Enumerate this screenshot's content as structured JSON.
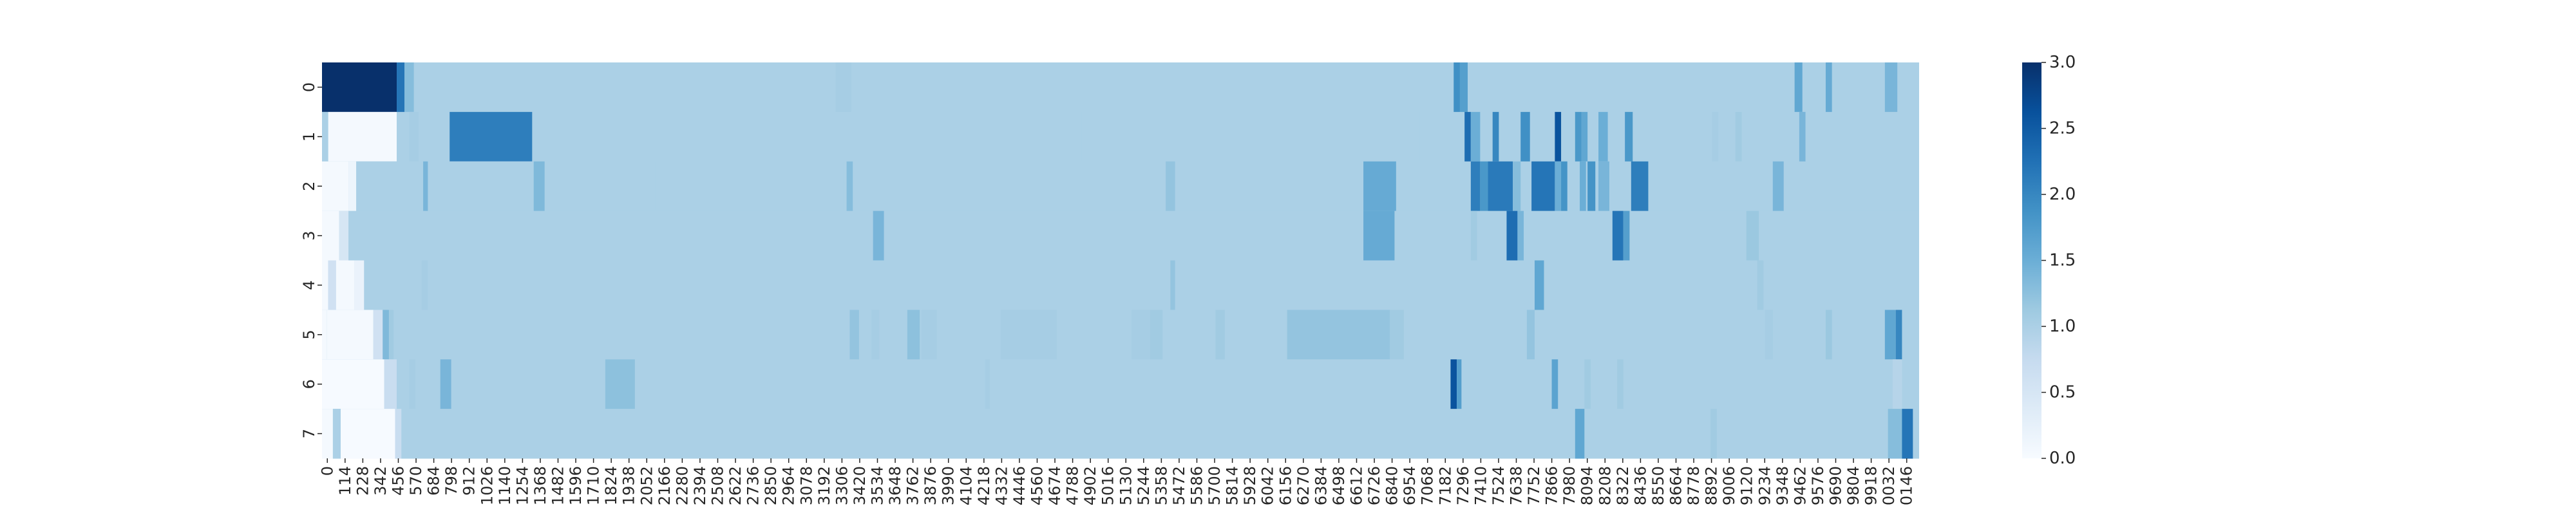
{
  "chart_data": {
    "type": "heatmap",
    "title": "",
    "xlabel": "",
    "ylabel": "",
    "rows": [
      "0",
      "1",
      "2",
      "3",
      "4",
      "5",
      "6",
      "7"
    ],
    "x_tick_labels": [
      "0",
      "114",
      "228",
      "342",
      "456",
      "570",
      "684",
      "798",
      "912",
      "1026",
      "1140",
      "1254",
      "1368",
      "1482",
      "1596",
      "1710",
      "1824",
      "1938",
      "2052",
      "2166",
      "2280",
      "2394",
      "2508",
      "2622",
      "2736",
      "2850",
      "2964",
      "3078",
      "3192",
      "3306",
      "3420",
      "3534",
      "3648",
      "3762",
      "3876",
      "3990",
      "4104",
      "4218",
      "4332",
      "4446",
      "4560",
      "4674",
      "4788",
      "4902",
      "5016",
      "5130",
      "5244",
      "5358",
      "5472",
      "5586",
      "5700",
      "5814",
      "5928",
      "6042",
      "6156",
      "6270",
      "6384",
      "6498",
      "6612",
      "6726",
      "6840",
      "6954",
      "7068",
      "7182",
      "7296",
      "7410",
      "7524",
      "7638",
      "7752",
      "7866",
      "7980",
      "8094",
      "8208",
      "8322",
      "8436",
      "8550",
      "8664",
      "8778",
      "8892",
      "9006",
      "9120",
      "9234",
      "9348",
      "9462",
      "9576",
      "9690",
      "9804",
      "9918",
      "0032",
      "0146"
    ],
    "x_range": [
      0,
      10260
    ],
    "baseline_value": 1.0,
    "colormap": "Blues",
    "color_range": [
      0,
      3.0
    ],
    "colorbar_ticks": [
      "0.0",
      "0.5",
      "1.0",
      "1.5",
      "2.0",
      "2.5",
      "3.0"
    ],
    "segments": [
      [
        [
          0,
          480,
          3.0
        ],
        [
          480,
          530,
          2.2
        ],
        [
          530,
          590,
          1.3
        ],
        [
          3300,
          3400,
          1.05
        ],
        [
          7270,
          7310,
          1.9
        ],
        [
          7310,
          7360,
          1.7
        ],
        [
          9460,
          9510,
          1.6
        ],
        [
          9660,
          9700,
          1.55
        ],
        [
          10040,
          10120,
          1.4
        ]
      ],
      [
        [
          0,
          40,
          1.0
        ],
        [
          40,
          480,
          0.05
        ],
        [
          560,
          620,
          1.05
        ],
        [
          820,
          1350,
          2.1
        ],
        [
          4700,
          4880,
          1.0
        ],
        [
          6900,
          7050,
          1.0
        ],
        [
          7340,
          7380,
          2.3
        ],
        [
          7380,
          7440,
          1.5
        ],
        [
          7520,
          7560,
          2.0
        ],
        [
          7700,
          7760,
          1.9
        ],
        [
          7920,
          7960,
          2.6
        ],
        [
          8050,
          8090,
          1.8
        ],
        [
          8090,
          8130,
          1.6
        ],
        [
          8200,
          8260,
          1.5
        ],
        [
          8370,
          8420,
          1.8
        ],
        [
          8930,
          8970,
          1.05
        ],
        [
          9080,
          9120,
          1.1
        ],
        [
          9490,
          9530,
          1.4
        ]
      ],
      [
        [
          0,
          170,
          0.05
        ],
        [
          170,
          220,
          0.15
        ],
        [
          220,
          1900,
          1.0
        ],
        [
          650,
          680,
          1.4
        ],
        [
          1360,
          1430,
          1.35
        ],
        [
          2140,
          3350,
          1.0
        ],
        [
          3370,
          3410,
          1.3
        ],
        [
          5420,
          5480,
          1.2
        ],
        [
          6690,
          6900,
          1.55
        ],
        [
          7380,
          7440,
          2.1
        ],
        [
          7440,
          7490,
          1.8
        ],
        [
          7490,
          7650,
          2.15
        ],
        [
          7650,
          7700,
          1.3
        ],
        [
          7770,
          7920,
          2.2
        ],
        [
          7920,
          7960,
          1.5
        ],
        [
          7960,
          8000,
          1.85
        ],
        [
          8080,
          8120,
          1.5
        ],
        [
          8130,
          8180,
          1.85
        ],
        [
          8200,
          8270,
          1.4
        ],
        [
          8410,
          8520,
          2.1
        ],
        [
          9320,
          9390,
          1.4
        ]
      ],
      [
        [
          0,
          110,
          0.05
        ],
        [
          110,
          170,
          0.5
        ],
        [
          3540,
          3610,
          1.4
        ],
        [
          6690,
          6890,
          1.55
        ],
        [
          7380,
          7420,
          1.1
        ],
        [
          7610,
          7680,
          2.3
        ],
        [
          7680,
          7720,
          1.4
        ],
        [
          8290,
          8360,
          2.2
        ],
        [
          8360,
          8400,
          1.7
        ],
        [
          9150,
          9230,
          1.15
        ]
      ],
      [
        [
          0,
          40,
          0.05
        ],
        [
          40,
          90,
          0.6
        ],
        [
          90,
          210,
          0.05
        ],
        [
          210,
          270,
          0.2
        ],
        [
          640,
          680,
          1.05
        ],
        [
          5450,
          5480,
          1.2
        ],
        [
          7790,
          7850,
          1.6
        ],
        [
          9220,
          9260,
          1.1
        ]
      ],
      [
        [
          0,
          30,
          0.05
        ],
        [
          30,
          330,
          0.05
        ],
        [
          330,
          390,
          0.6
        ],
        [
          390,
          430,
          1.35
        ],
        [
          430,
          460,
          1.1
        ],
        [
          3390,
          3450,
          1.2
        ],
        [
          3530,
          3580,
          1.05
        ],
        [
          3760,
          3840,
          1.25
        ],
        [
          3850,
          3950,
          1.05
        ],
        [
          4360,
          4720,
          1.05
        ],
        [
          5200,
          5320,
          1.05
        ],
        [
          5320,
          5400,
          1.1
        ],
        [
          5740,
          5800,
          1.1
        ],
        [
          6200,
          6860,
          1.2
        ],
        [
          6860,
          6950,
          1.1
        ],
        [
          7740,
          7790,
          1.2
        ],
        [
          9270,
          9320,
          1.05
        ],
        [
          9660,
          9700,
          1.15
        ],
        [
          10040,
          10110,
          1.6
        ],
        [
          10110,
          10150,
          2.0
        ]
      ],
      [
        [
          0,
          400,
          0.02
        ],
        [
          400,
          480,
          0.7
        ],
        [
          480,
          560,
          1.0
        ],
        [
          560,
          600,
          1.05
        ],
        [
          760,
          830,
          1.4
        ],
        [
          1820,
          2010,
          1.25
        ],
        [
          4260,
          4290,
          1.05
        ],
        [
          6690,
          7150,
          1.0
        ],
        [
          7250,
          7290,
          2.6
        ],
        [
          7290,
          7320,
          1.7
        ],
        [
          7900,
          7940,
          1.65
        ],
        [
          8110,
          8150,
          1.1
        ],
        [
          8320,
          8360,
          1.1
        ],
        [
          10090,
          10150,
          0.9
        ]
      ],
      [
        [
          0,
          70,
          0.05
        ],
        [
          70,
          120,
          1.0
        ],
        [
          120,
          470,
          0.02
        ],
        [
          470,
          510,
          0.7
        ],
        [
          8050,
          8110,
          1.6
        ],
        [
          8920,
          8960,
          1.1
        ],
        [
          10040,
          10060,
          1.0
        ],
        [
          10060,
          10150,
          1.3
        ],
        [
          10150,
          10220,
          2.2
        ]
      ]
    ]
  }
}
